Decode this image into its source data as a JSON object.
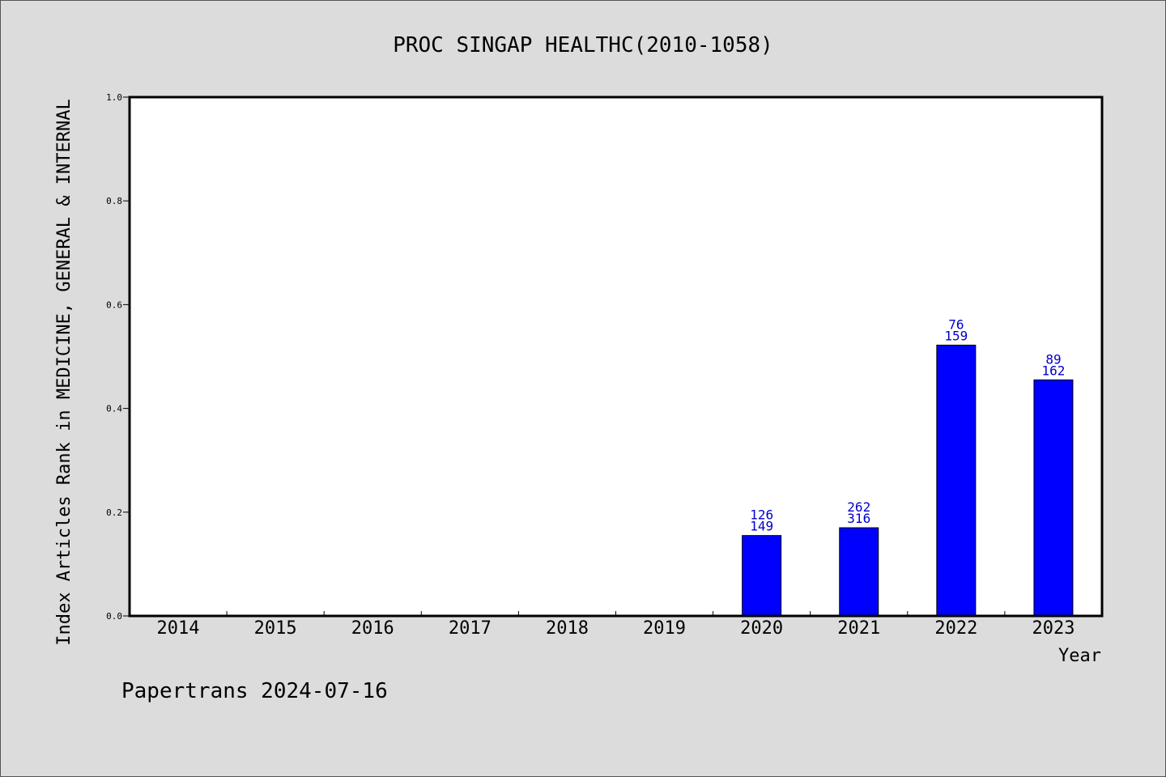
{
  "chart_data": {
    "type": "bar",
    "title": "PROC SINGAP HEALTHC(2010-1058)",
    "ylabel": "Index Articles Rank in MEDICINE, GENERAL & INTERNAL",
    "xlabel": "Year",
    "categories": [
      "2014",
      "2015",
      "2016",
      "2017",
      "2018",
      "2019",
      "2020",
      "2021",
      "2022",
      "2023"
    ],
    "values": [
      0,
      0,
      0,
      0,
      0,
      0,
      0.155,
      0.17,
      0.522,
      0.455
    ],
    "data_labels": [
      null,
      null,
      null,
      null,
      null,
      null,
      {
        "top": "126",
        "bottom": "149"
      },
      {
        "top": "262",
        "bottom": "316"
      },
      {
        "top": "76",
        "bottom": "159"
      },
      {
        "top": "89",
        "bottom": "162"
      }
    ],
    "ylim": [
      0,
      1.0
    ],
    "yticks": [
      "0.0",
      "0.2",
      "0.4",
      "0.6",
      "0.8",
      "1.0"
    ],
    "bar_color": "#0000ff",
    "label_color": "#0000cc",
    "grid": false
  },
  "footer": "Papertrans 2024-07-16"
}
